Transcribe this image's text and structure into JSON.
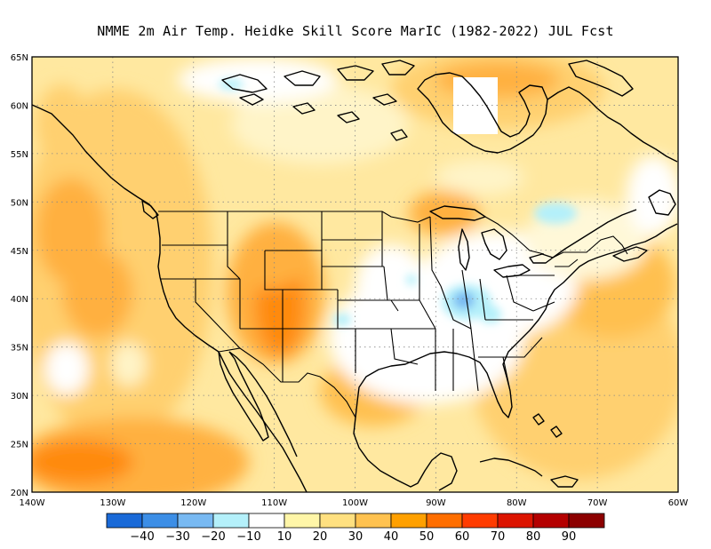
{
  "title": "NMME  2m Air Temp. Heidke Skill Score MarIC (1982-2022) JUL Fcst",
  "map": {
    "lon_range": [
      -140,
      -60
    ],
    "lat_range": [
      20,
      65
    ],
    "lon_labels": [
      {
        "value": -140,
        "text": "140W"
      },
      {
        "value": -130,
        "text": "130W"
      },
      {
        "value": -120,
        "text": "120W"
      },
      {
        "value": -110,
        "text": "110W"
      },
      {
        "value": -100,
        "text": "100W"
      },
      {
        "value": -90,
        "text": "90W"
      },
      {
        "value": -80,
        "text": "80W"
      },
      {
        "value": -70,
        "text": "70W"
      },
      {
        "value": -60,
        "text": "60W"
      }
    ],
    "lat_labels": [
      {
        "value": 20,
        "text": "20N"
      },
      {
        "value": 25,
        "text": "25N"
      },
      {
        "value": 30,
        "text": "30N"
      },
      {
        "value": 35,
        "text": "35N"
      },
      {
        "value": 40,
        "text": "40N"
      },
      {
        "value": 45,
        "text": "45N"
      },
      {
        "value": 50,
        "text": "50N"
      },
      {
        "value": 55,
        "text": "55N"
      },
      {
        "value": 60,
        "text": "60N"
      },
      {
        "value": 65,
        "text": "65N"
      }
    ]
  },
  "colorbar": {
    "colors": [
      "#1a6ad8",
      "#3c8ee6",
      "#78b9f2",
      "#b4f0fa",
      "#ffffff",
      "#fff6a8",
      "#ffe080",
      "#ffc250",
      "#ffa000",
      "#ff6e00",
      "#ff3c00",
      "#dc1400",
      "#b40000",
      "#8c0000"
    ],
    "labels": [
      "−40",
      "−30",
      "−20",
      "−10",
      "10",
      "20",
      "30",
      "40",
      "50",
      "60",
      "70",
      "80",
      "90"
    ]
  },
  "colors": {
    "coast": "#000000",
    "grid": "#888888"
  }
}
